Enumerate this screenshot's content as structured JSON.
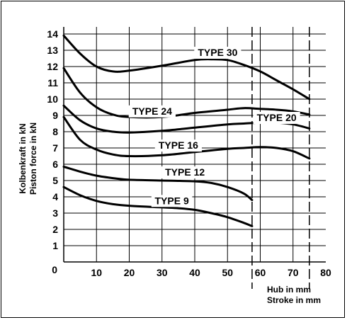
{
  "chart_data": {
    "type": "line",
    "ylabel_de": "Kolbenkraft in kN",
    "ylabel_en": "Piston force in kN",
    "xlabel_de": "Hub in mm",
    "xlabel_en": "Stroke in mm",
    "xlim": [
      0,
      80
    ],
    "ylim": [
      0,
      14
    ],
    "x_ticks": [
      "10",
      "20",
      "30",
      "40",
      "50",
      "60",
      "70",
      "80"
    ],
    "y_ticks": [
      "1",
      "2",
      "3",
      "4",
      "5",
      "6",
      "7",
      "8",
      "9",
      "10",
      "11",
      "12",
      "13",
      "14"
    ],
    "origin_label": "0",
    "grid": true,
    "reference_lines_x": [
      57.5,
      75
    ],
    "series": [
      {
        "name": "TYPE 30",
        "points": [
          [
            0,
            13.9
          ],
          [
            5,
            12.8
          ],
          [
            10,
            12.0
          ],
          [
            15,
            11.7
          ],
          [
            20,
            11.75
          ],
          [
            30,
            12.05
          ],
          [
            40,
            12.4
          ],
          [
            45,
            12.45
          ],
          [
            50,
            12.4
          ],
          [
            55,
            12.1
          ],
          [
            60,
            11.7
          ],
          [
            65,
            11.15
          ],
          [
            70,
            10.6
          ],
          [
            75,
            10.0
          ]
        ]
      },
      {
        "name": "TYPE 24",
        "points": [
          [
            0,
            11.9
          ],
          [
            5,
            10.4
          ],
          [
            10,
            9.5
          ],
          [
            15,
            9.05
          ],
          [
            20,
            8.9
          ],
          [
            30,
            8.9
          ],
          [
            40,
            9.15
          ],
          [
            50,
            9.35
          ],
          [
            55,
            9.45
          ],
          [
            60,
            9.4
          ],
          [
            65,
            9.35
          ],
          [
            70,
            9.25
          ],
          [
            75,
            9.05
          ]
        ]
      },
      {
        "name": "TYPE 20",
        "points": [
          [
            0,
            9.6
          ],
          [
            5,
            8.7
          ],
          [
            10,
            8.2
          ],
          [
            15,
            8.0
          ],
          [
            20,
            7.95
          ],
          [
            30,
            8.05
          ],
          [
            40,
            8.25
          ],
          [
            50,
            8.45
          ],
          [
            55,
            8.5
          ],
          [
            60,
            8.55
          ],
          [
            65,
            8.55
          ],
          [
            70,
            8.45
          ],
          [
            75,
            8.2
          ]
        ]
      },
      {
        "name": "TYPE 16",
        "points": [
          [
            0,
            8.9
          ],
          [
            5,
            7.5
          ],
          [
            10,
            6.9
          ],
          [
            15,
            6.6
          ],
          [
            20,
            6.5
          ],
          [
            30,
            6.55
          ],
          [
            40,
            6.75
          ],
          [
            50,
            6.95
          ],
          [
            55,
            7.0
          ],
          [
            60,
            7.05
          ],
          [
            65,
            7.0
          ],
          [
            70,
            6.8
          ],
          [
            75,
            6.35
          ]
        ]
      },
      {
        "name": "TYPE 12",
        "points": [
          [
            0,
            5.85
          ],
          [
            5,
            5.55
          ],
          [
            10,
            5.3
          ],
          [
            15,
            5.15
          ],
          [
            20,
            5.05
          ],
          [
            30,
            5.0
          ],
          [
            40,
            4.95
          ],
          [
            45,
            4.85
          ],
          [
            50,
            4.6
          ],
          [
            55,
            4.2
          ],
          [
            57.5,
            3.8
          ]
        ]
      },
      {
        "name": "TYPE 9",
        "points": [
          [
            0,
            4.6
          ],
          [
            5,
            4.1
          ],
          [
            10,
            3.75
          ],
          [
            15,
            3.55
          ],
          [
            20,
            3.45
          ],
          [
            30,
            3.35
          ],
          [
            35,
            3.3
          ],
          [
            40,
            3.2
          ],
          [
            45,
            3.0
          ],
          [
            50,
            2.75
          ],
          [
            55,
            2.4
          ],
          [
            57.5,
            2.2
          ]
        ]
      }
    ],
    "label_anchors": [
      [
        47,
        12.65
      ],
      [
        27,
        9.05
      ],
      [
        65,
        8.65
      ],
      [
        35,
        6.95
      ],
      [
        37,
        5.3
      ],
      [
        33,
        3.55
      ]
    ]
  }
}
